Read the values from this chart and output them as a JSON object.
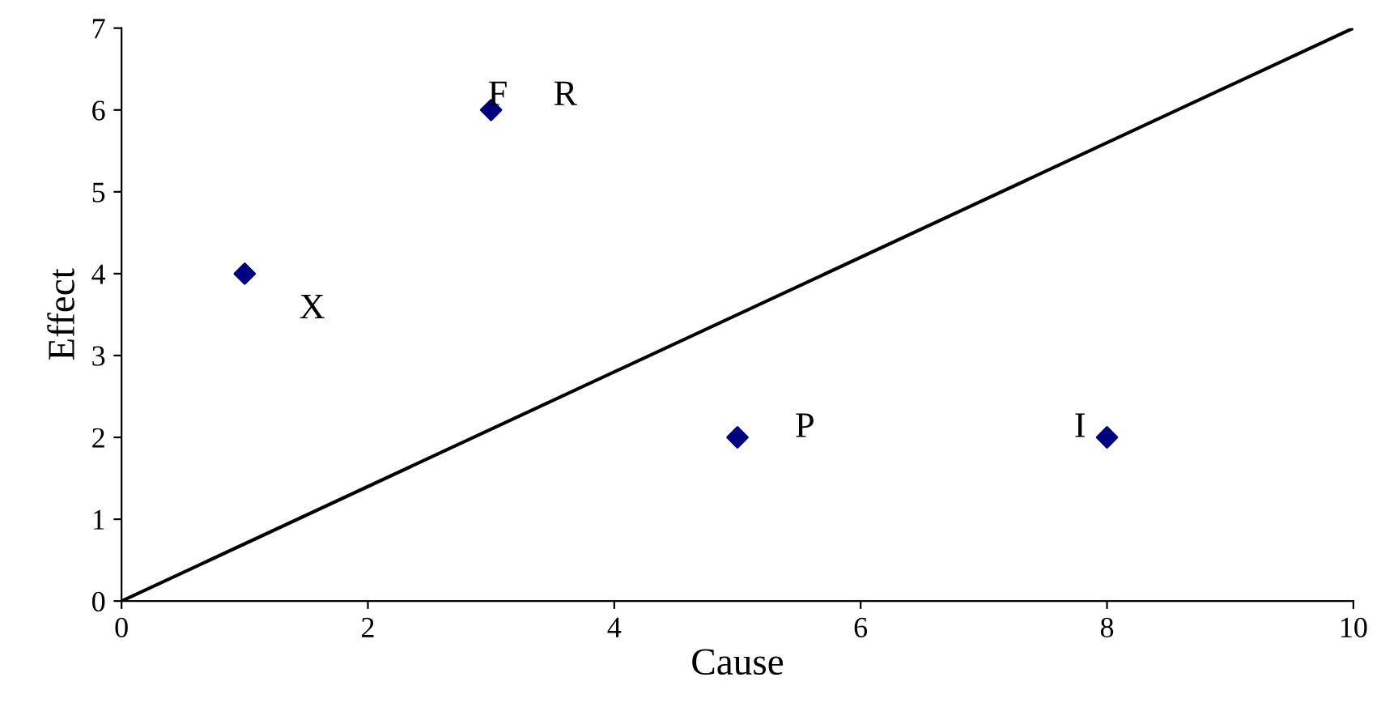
{
  "chart_data": {
    "type": "scatter",
    "xlabel": "Cause",
    "ylabel": "Effect",
    "xlim": [
      0,
      10
    ],
    "ylim": [
      0,
      7
    ],
    "xticks": [
      0,
      2,
      4,
      6,
      8,
      10
    ],
    "yticks": [
      0,
      1,
      2,
      3,
      4,
      5,
      6,
      7
    ],
    "grid": false,
    "marker": "diamond",
    "series": [
      {
        "color": "#000080",
        "x": [
          1,
          3,
          5,
          8
        ],
        "values": [
          4,
          6,
          2,
          2
        ]
      },
      {
        "type": "line",
        "color": "#000000",
        "x": [
          0,
          10
        ],
        "values": [
          0,
          7
        ],
        "marker": "none",
        "line_style": "solid"
      }
    ],
    "annotations": [
      {
        "text": "X",
        "x": 1,
        "y": 4
      },
      {
        "text": "F",
        "x": 3,
        "y": 6
      },
      {
        "text": "R",
        "x": 3,
        "y": 6
      },
      {
        "text": "P",
        "x": 5,
        "y": 2
      },
      {
        "text": "I",
        "x": 8,
        "y": 2
      }
    ]
  }
}
